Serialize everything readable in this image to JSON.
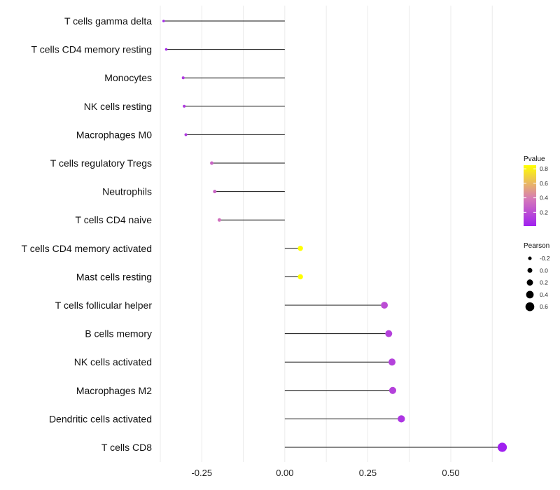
{
  "chart_data": {
    "type": "lollipop",
    "title": "",
    "xlabel": "",
    "ylabel": "",
    "xlim": [
      -0.375,
      0.675
    ],
    "xticks": [
      -0.25,
      0.0,
      0.25,
      0.5
    ],
    "xtick_labels": [
      "-0.25",
      "0.00",
      "0.25",
      "0.50"
    ],
    "grid": true,
    "categories": [
      "T cells gamma delta",
      "T cells CD4 memory resting",
      "Monocytes",
      "NK cells resting",
      "Macrophages M0",
      "T cells regulatory  Tregs ",
      "Neutrophils",
      "T cells CD4 naive",
      "T cells CD4 memory activated",
      "Mast cells resting",
      "T cells follicular helper",
      "B cells memory",
      "NK cells activated",
      "Macrophages M2",
      "Dendritic cells activated",
      "T cells CD8"
    ],
    "values": [
      -0.365,
      -0.357,
      -0.306,
      -0.303,
      -0.298,
      -0.22,
      -0.211,
      -0.197,
      0.047,
      0.047,
      0.3,
      0.313,
      0.323,
      0.325,
      0.351,
      0.655
    ],
    "pvalues": [
      0.05,
      0.05,
      0.12,
      0.12,
      0.12,
      0.3,
      0.3,
      0.35,
      0.85,
      0.85,
      0.2,
      0.15,
      0.15,
      0.15,
      0.1,
      0.01
    ],
    "legend_color": {
      "title": "Pvalue",
      "ticks": [
        0.2,
        0.4,
        0.6,
        0.8
      ],
      "tick_labels": [
        "0.2",
        "0.4",
        "0.6",
        "0.8"
      ],
      "range": [
        0.01,
        0.85
      ],
      "color_low": "#a020f0",
      "color_mid": "#d67ab8",
      "color_high": "#ffff00"
    },
    "legend_size": {
      "title": "Pearson",
      "values": [
        -0.2,
        0.0,
        0.2,
        0.4,
        0.6
      ],
      "labels": [
        "-0.2",
        "0.0",
        "0.2",
        "0.4",
        "0.6"
      ]
    },
    "legend_position": "right"
  }
}
